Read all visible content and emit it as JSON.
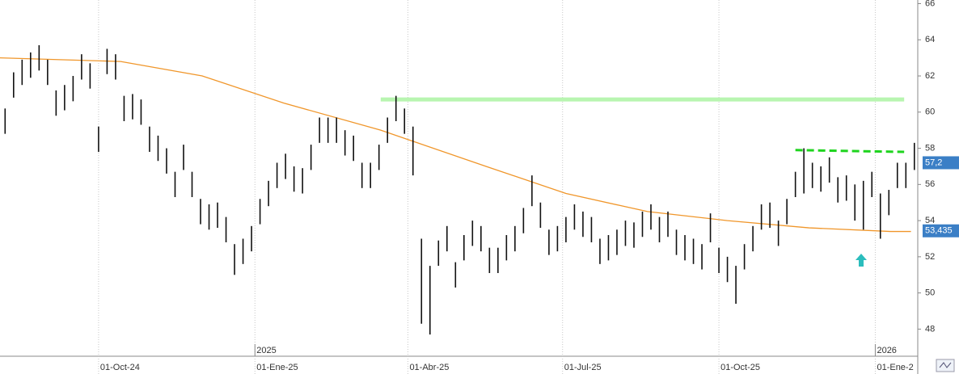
{
  "chart_data": {
    "type": "ohlc",
    "color": "#111111",
    "xlim": [
      -58,
      482
    ],
    "ylim": [
      46.5,
      66.2
    ],
    "yticks": [
      48,
      50,
      52,
      54,
      56,
      58,
      60,
      62,
      64,
      66
    ],
    "xticks": [
      {
        "value": 0,
        "label": "01-Oct-24"
      },
      {
        "value": 92,
        "label": "01-Ene-25"
      },
      {
        "value": 182,
        "label": "01-Abr-25"
      },
      {
        "value": 273,
        "label": "01-Jul-25"
      },
      {
        "value": 365,
        "label": "01-Oct-25"
      },
      {
        "value": 457,
        "label": "01-Ene-2"
      }
    ],
    "year_markers": [
      {
        "value": 92,
        "label": "2025"
      },
      {
        "value": 457,
        "label": "2026"
      }
    ],
    "x": [
      -55,
      -50,
      -45,
      -40,
      -35,
      -30,
      -25,
      -20,
      -15,
      -10,
      -5,
      0,
      5,
      10,
      15,
      20,
      25,
      30,
      35,
      40,
      45,
      50,
      55,
      60,
      65,
      70,
      75,
      80,
      85,
      90,
      95,
      100,
      105,
      110,
      115,
      120,
      125,
      130,
      135,
      140,
      145,
      150,
      155,
      160,
      165,
      170,
      175,
      180,
      185,
      190,
      195,
      200,
      205,
      210,
      215,
      220,
      225,
      230,
      235,
      240,
      245,
      250,
      255,
      260,
      265,
      270,
      275,
      280,
      285,
      290,
      295,
      300,
      305,
      310,
      315,
      320,
      325,
      330,
      335,
      340,
      345,
      350,
      355,
      360,
      365,
      370,
      375,
      380,
      385,
      390,
      395,
      400,
      405,
      410,
      415,
      420,
      425,
      430,
      435,
      440,
      445,
      450,
      455,
      460,
      465,
      470,
      475,
      480
    ],
    "high": [
      60.2,
      62.2,
      62.9,
      63.3,
      63.7,
      62.9,
      61.2,
      61.5,
      62,
      63.2,
      62.7,
      59.2,
      63.5,
      63.2,
      60.9,
      61,
      60.7,
      59.2,
      58.7,
      58,
      56.7,
      58.2,
      56.7,
      55.2,
      54.9,
      55,
      54.2,
      52.7,
      53,
      53.7,
      55.2,
      56.2,
      57.2,
      57.7,
      57,
      56.9,
      58.2,
      59.7,
      59.7,
      59.7,
      59,
      58.7,
      57.2,
      57.2,
      58.2,
      59.7,
      60.9,
      60.2,
      59.2,
      53,
      51.5,
      52.9,
      53.7,
      51.7,
      53.2,
      54,
      53.7,
      52.5,
      52.5,
      53.2,
      53.7,
      54.7,
      56.5,
      55,
      53.5,
      53.7,
      54.2,
      54.9,
      54.5,
      54.2,
      53,
      53.2,
      53.5,
      54,
      53.9,
      54.5,
      54.9,
      54.2,
      54.5,
      53.5,
      53.2,
      53,
      52.7,
      54.4,
      52.5,
      52,
      51.5,
      52.7,
      53.7,
      54.9,
      55,
      54,
      55.2,
      56.7,
      58,
      57.2,
      57,
      57.5,
      56.4,
      56.5,
      56,
      56.2,
      56.7,
      55.5,
      55.7,
      57.2,
      57.2,
      58.3
    ],
    "low": [
      58.8,
      60.8,
      61.5,
      61.9,
      62.3,
      61.5,
      59.8,
      60.1,
      60.6,
      61.8,
      61.3,
      57.8,
      62.1,
      61.8,
      59.5,
      59.6,
      59.3,
      57.8,
      57.3,
      56.6,
      55.3,
      56.8,
      55.3,
      53.8,
      53.5,
      53.6,
      52.8,
      51,
      51.6,
      52.3,
      53.8,
      54.8,
      55.8,
      56.3,
      55.6,
      55.5,
      56.8,
      58.3,
      58.3,
      58.3,
      57.6,
      57.3,
      55.8,
      55.8,
      56.8,
      58.3,
      59.5,
      58.8,
      56.5,
      48.3,
      47.7,
      51.5,
      52.3,
      50.3,
      51.8,
      52.6,
      52.3,
      51.1,
      51.1,
      51.8,
      52.3,
      53.3,
      54.8,
      53.6,
      52.1,
      52.3,
      52.8,
      53.5,
      53.1,
      52.8,
      51.6,
      51.8,
      52.1,
      52.6,
      52.5,
      53.1,
      53.5,
      52.8,
      53.1,
      52.1,
      51.8,
      51.6,
      51.3,
      52.8,
      51.1,
      50.6,
      49.4,
      51.3,
      52.3,
      53.5,
      53.6,
      52.6,
      53.8,
      55.3,
      55.5,
      55.8,
      55.6,
      56.1,
      55,
      55.1,
      54,
      53.5,
      55.3,
      53,
      54.3,
      55.8,
      55.8,
      56.8
    ],
    "ma": {
      "color": "#f0962a",
      "x": [
        -58,
        13,
        61,
        109,
        166,
        228,
        275,
        323,
        370,
        418,
        466,
        478
      ],
      "values": [
        63,
        62.8,
        62,
        60.5,
        59,
        57,
        55.5,
        54.5,
        54,
        53.6,
        53.4,
        53.4
      ]
    },
    "lines": [
      {
        "x": [
          166,
          474
        ],
        "values": [
          60.7,
          60.7
        ],
        "color": "#b8f5b0",
        "dashed": false
      },
      {
        "x": [
          410,
          474
        ],
        "values": [
          57.9,
          57.8
        ],
        "color": "#1ed41e",
        "dashed": true
      }
    ],
    "price_tags": [
      {
        "value": 57.2,
        "label": "57,2",
        "color": "#3b7fc6"
      },
      {
        "value": 53.435,
        "label": "53,435",
        "color": "#3b7fc6"
      }
    ]
  }
}
